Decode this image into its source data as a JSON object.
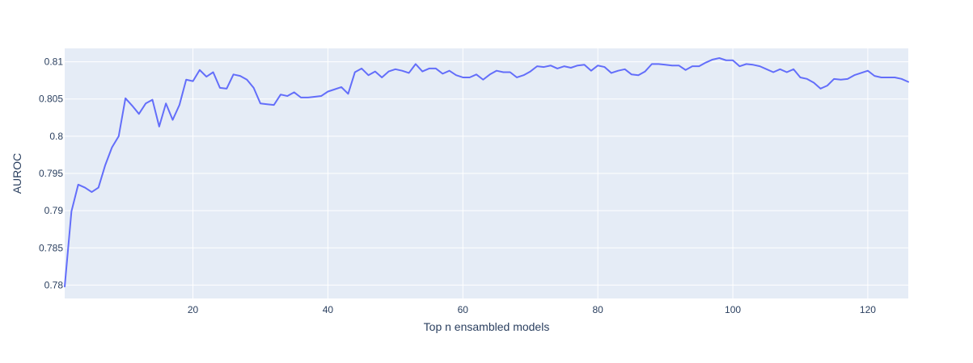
{
  "colors": {
    "background": "#ffffff",
    "plot_background": "#e5ecf6",
    "grid": "#ffffff",
    "line": "#636efa",
    "text": "#2a3f5f"
  },
  "chart_data": {
    "type": "line",
    "title": "",
    "xlabel": "Top n ensambled models",
    "ylabel": "AUROC",
    "xlim": [
      1,
      126
    ],
    "ylim": [
      0.7782,
      0.8118
    ],
    "xticks": [
      20,
      40,
      60,
      80,
      100,
      120
    ],
    "xtick_labels": [
      "20",
      "40",
      "60",
      "80",
      "100",
      "120"
    ],
    "yticks": [
      0.78,
      0.785,
      0.79,
      0.795,
      0.8,
      0.805,
      0.81
    ],
    "ytick_labels": [
      "0.78",
      "0.785",
      "0.79",
      "0.795",
      "0.8",
      "0.805",
      "0.81"
    ],
    "grid": true,
    "legend": "none",
    "series": [
      {
        "x": [
          1,
          2,
          3,
          4,
          5,
          6,
          7,
          8,
          9,
          10,
          11,
          12,
          13,
          14,
          15,
          16,
          17,
          18,
          19,
          20,
          21,
          22,
          23,
          24,
          25,
          26,
          27,
          28,
          29,
          30,
          31,
          32,
          33,
          34,
          35,
          36,
          37,
          38,
          39,
          40,
          41,
          42,
          43,
          44,
          45,
          46,
          47,
          48,
          49,
          50,
          51,
          52,
          53,
          54,
          55,
          56,
          57,
          58,
          59,
          60,
          61,
          62,
          63,
          64,
          65,
          66,
          67,
          68,
          69,
          70,
          71,
          72,
          73,
          74,
          75,
          76,
          77,
          78,
          79,
          80,
          81,
          82,
          83,
          84,
          85,
          86,
          87,
          88,
          89,
          90,
          91,
          92,
          93,
          94,
          95,
          96,
          97,
          98,
          99,
          100,
          101,
          102,
          103,
          104,
          105,
          106,
          107,
          108,
          109,
          110,
          111,
          112,
          113,
          114,
          115,
          116,
          117,
          118,
          119,
          120,
          121,
          122,
          123,
          124,
          125,
          126
        ],
        "y": [
          0.7798,
          0.7899,
          0.7935,
          0.7931,
          0.7925,
          0.7931,
          0.7961,
          0.7985,
          0.8,
          0.8051,
          0.8041,
          0.803,
          0.8044,
          0.8049,
          0.8013,
          0.8044,
          0.8022,
          0.8042,
          0.8076,
          0.8074,
          0.8089,
          0.808,
          0.8086,
          0.8065,
          0.8064,
          0.8083,
          0.8081,
          0.8076,
          0.8065,
          0.8044,
          0.8043,
          0.8042,
          0.8056,
          0.8054,
          0.8059,
          0.8052,
          0.8052,
          0.8053,
          0.8054,
          0.806,
          0.8063,
          0.8066,
          0.8057,
          0.8086,
          0.8091,
          0.8082,
          0.8087,
          0.8079,
          0.8087,
          0.809,
          0.8088,
          0.8085,
          0.8097,
          0.8087,
          0.8091,
          0.8091,
          0.8084,
          0.8088,
          0.8082,
          0.8079,
          0.8079,
          0.8083,
          0.8076,
          0.8083,
          0.8088,
          0.8086,
          0.8086,
          0.8079,
          0.8082,
          0.8087,
          0.8094,
          0.8093,
          0.8095,
          0.8091,
          0.8094,
          0.8092,
          0.8095,
          0.8096,
          0.8088,
          0.8095,
          0.8093,
          0.8085,
          0.8088,
          0.809,
          0.8083,
          0.8082,
          0.8087,
          0.8097,
          0.8097,
          0.8096,
          0.8095,
          0.8095,
          0.8089,
          0.8094,
          0.8094,
          0.8099,
          0.8103,
          0.8105,
          0.8102,
          0.8102,
          0.8094,
          0.8097,
          0.8096,
          0.8094,
          0.809,
          0.8086,
          0.809,
          0.8086,
          0.809,
          0.8079,
          0.8077,
          0.8072,
          0.8064,
          0.8068,
          0.8077,
          0.8076,
          0.8077,
          0.8082,
          0.8085,
          0.8088,
          0.8081,
          0.8079,
          0.8079,
          0.8079,
          0.8077,
          0.8073
        ]
      }
    ]
  }
}
